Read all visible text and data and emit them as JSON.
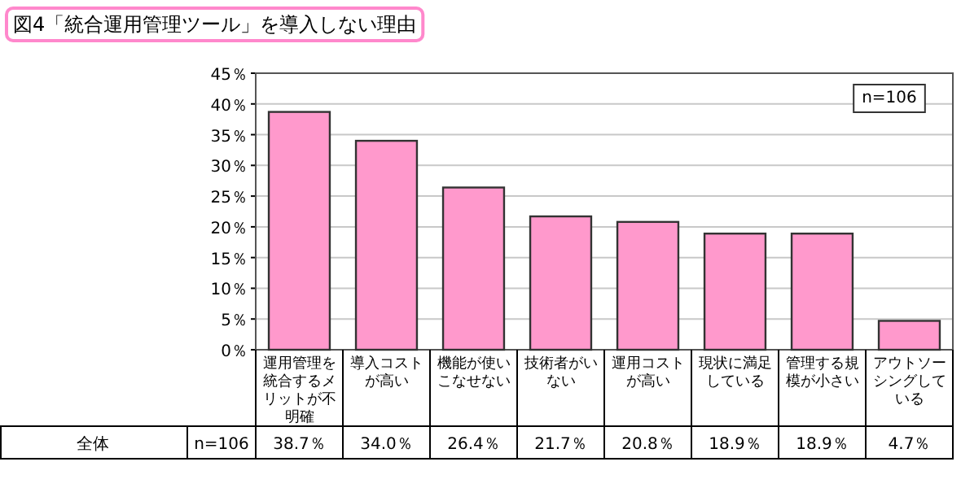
{
  "chart_data": {
    "type": "bar",
    "title": "図4「統合運用管理ツール」を導入しない理由",
    "categories": [
      "運用管理を統合するメリットが不明確",
      "導入コストが高い",
      "機能が使いこなせない",
      "技術者がいない",
      "運用コストが高い",
      "現状に満足している",
      "管理する規模が小さい",
      "アウトソーシングしている"
    ],
    "values": [
      38.7,
      34.0,
      26.4,
      21.7,
      20.8,
      18.9,
      18.9,
      4.7
    ],
    "value_labels": [
      "38.7％",
      "34.0％",
      "26.4％",
      "21.7％",
      "20.8％",
      "18.9％",
      "18.9％",
      "4.7％"
    ],
    "color": "#ff99cc",
    "ylim": [
      0,
      45
    ],
    "yticks": [
      {
        "value": 0,
        "label": "0％"
      },
      {
        "value": 5,
        "label": "5％"
      },
      {
        "value": 10,
        "label": "10％"
      },
      {
        "value": 15,
        "label": "15％"
      },
      {
        "value": 20,
        "label": "20％"
      },
      {
        "value": 25,
        "label": "25％"
      },
      {
        "value": 30,
        "label": "30％"
      },
      {
        "value": 35,
        "label": "35％"
      },
      {
        "value": 40,
        "label": "40％"
      },
      {
        "value": 45,
        "label": "45％"
      }
    ],
    "grid": "y",
    "annotations": [
      "n=106",
      "全体",
      "n=106"
    ]
  }
}
